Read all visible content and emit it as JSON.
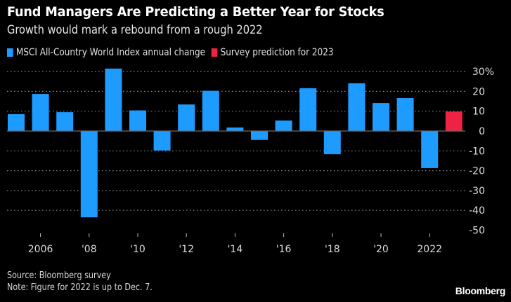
{
  "header": {
    "title": "Fund Managers Are Predicting a Better Year for Stocks",
    "subtitle": "Growth would mark a rebound from a rough 2022"
  },
  "legend": [
    {
      "label": "MSCI All-Country World Index annual change",
      "color": "#1e9bff"
    },
    {
      "label": "Survey prediction for 2023",
      "color": "#ee2244"
    }
  ],
  "footer": {
    "source": "Source: Bloomberg survey",
    "note": "Note: Figure for 2022 is up to Dec. 7.",
    "brand": "Bloomberg"
  },
  "chart_data": {
    "type": "bar",
    "title": "Fund Managers Are Predicting a Better Year for Stocks",
    "subtitle": "Growth would mark a rebound from a rough 2022",
    "xlabel": "",
    "ylabel": "",
    "ylim": [
      -50,
      30
    ],
    "yticks": [
      30,
      20,
      10,
      0,
      -10,
      -20,
      -30,
      -40,
      -50
    ],
    "ytick_labels": [
      "30%",
      "20",
      "10",
      "0",
      "-10",
      "-20",
      "-30",
      "-40",
      "-50"
    ],
    "y_axis_position": "right",
    "grid": true,
    "legend_position": "top-left",
    "categories": [
      "2005",
      "2006",
      "2007",
      "2008",
      "2009",
      "2010",
      "2011",
      "2012",
      "2013",
      "2014",
      "2015",
      "2016",
      "2017",
      "2018",
      "2019",
      "2020",
      "2021",
      "2022",
      "2023"
    ],
    "xtick_labels": [
      {
        "category": "2006",
        "label": "2006"
      },
      {
        "category": "2008",
        "label": "'08"
      },
      {
        "category": "2010",
        "label": "'10"
      },
      {
        "category": "2012",
        "label": "'12"
      },
      {
        "category": "2014",
        "label": "'14"
      },
      {
        "category": "2016",
        "label": "'16"
      },
      {
        "category": "2018",
        "label": "'18"
      },
      {
        "category": "2020",
        "label": "'20"
      },
      {
        "category": "2022",
        "label": "2022"
      }
    ],
    "series": [
      {
        "name": "MSCI All-Country World Index annual change",
        "color": "#1e9bff",
        "values": [
          8.5,
          18.7,
          9.5,
          -43.5,
          31.5,
          10.4,
          -9.8,
          13.4,
          20.3,
          1.8,
          -4.5,
          5.3,
          21.6,
          -11.7,
          24.1,
          14.1,
          16.6,
          -18.7,
          null
        ]
      },
      {
        "name": "Survey prediction for 2023",
        "color": "#ee2244",
        "values": [
          null,
          null,
          null,
          null,
          null,
          null,
          null,
          null,
          null,
          null,
          null,
          null,
          null,
          null,
          null,
          null,
          null,
          null,
          9.8
        ]
      }
    ],
    "source": "Source: Bloomberg survey",
    "note": "Note: Figure for 2022 is up to Dec. 7."
  }
}
